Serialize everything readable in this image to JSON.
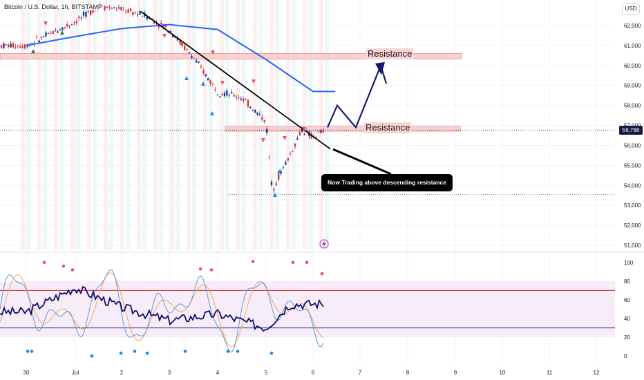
{
  "header": {
    "symbol_title": "Bitcoin / U.S. Dollar, 1h, BITSTAMP",
    "currency": "USD"
  },
  "last_price_label": "56,768",
  "annotations": {
    "resistance_upper": "Resistance",
    "resistance_lower": "Resistance",
    "callout": "Now Trading above descending resistance"
  },
  "colors": {
    "up": "#26a69a",
    "down": "#ef5350",
    "candle_up": "#1a3a9a",
    "candle_down": "#e02f3a",
    "ema": "#2962ff",
    "trendline": "#000000",
    "projection": "#131a6e",
    "resistance_zone": "#f9d0d0",
    "rsi_line": "#0d0d6b",
    "stoch_k": "#5b9bd5",
    "stoch_d": "#f5a25d",
    "level_high": "#c62828",
    "level_low": "#1a237e",
    "rsi_band": "#f3e5f5"
  },
  "chart_data": [
    {
      "type": "candlestick",
      "title": "",
      "ylabel": "USD",
      "yticks": [
        51000,
        52000,
        53000,
        54000,
        55000,
        56000,
        57000,
        58000,
        59000,
        60000,
        61000,
        62000
      ],
      "ytick_labels": [
        "51,000",
        "52,000",
        "53,000",
        "54,000",
        "55,000",
        "56,000",
        "57,000",
        "58,000",
        "59,000",
        "60,000",
        "61,000",
        "62,000"
      ],
      "ylim": [
        50800,
        62800
      ],
      "x_categories": [
        "30",
        "Jul",
        "2",
        "3",
        "4",
        "5",
        "6",
        "7",
        "8",
        "9",
        "10",
        "11",
        "12"
      ],
      "last_price": 56768,
      "resistance_zones": [
        {
          "label": "Resistance",
          "low": 60400,
          "high": 60600
        },
        {
          "label": "Resistance",
          "low": 56780,
          "high": 56950
        }
      ],
      "descending_trendline": {
        "from": [
          "Jul 2 ~12:00",
          62700
        ],
        "to": [
          "Jul 6 ~06:00",
          56100
        ]
      },
      "ema_series": [
        {
          "x": "Jun 30",
          "y": 61000
        },
        {
          "x": "Jul 1",
          "y": 61450
        },
        {
          "x": "Jul 2",
          "y": 61850
        },
        {
          "x": "Jul 3",
          "y": 62050
        },
        {
          "x": "Jul 4",
          "y": 61800
        },
        {
          "x": "Jul 5",
          "y": 60300
        },
        {
          "x": "Jul 6",
          "y": 58700
        }
      ],
      "price_path": [
        {
          "x": "Jun 30",
          "y": 61000
        },
        {
          "x": "Jul 1",
          "y": 62200
        },
        {
          "x": "Jul 1 12:00",
          "y": 63000
        },
        {
          "x": "Jul 2",
          "y": 62800
        },
        {
          "x": "Jul 2 12:00",
          "y": 62500
        },
        {
          "x": "Jul 3",
          "y": 61800
        },
        {
          "x": "Jul 3 12:00",
          "y": 60400
        },
        {
          "x": "Jul 4",
          "y": 58700
        },
        {
          "x": "Jul 4 12:00",
          "y": 58400
        },
        {
          "x": "Jul 5",
          "y": 57200
        },
        {
          "x": "Jul 5 03:00",
          "y": 53800
        },
        {
          "x": "Jul 5 12:00",
          "y": 55500
        },
        {
          "x": "Jul 5 18:00",
          "y": 56800
        },
        {
          "x": "Jul 6",
          "y": 56400
        },
        {
          "x": "Jul 6 06:00",
          "y": 56768
        }
      ],
      "projection_path": [
        {
          "x": "Jul 6 06:00",
          "y": 56900
        },
        {
          "x": "Jul 6 12:00",
          "y": 58000
        },
        {
          "x": "Jul 7",
          "y": 56900
        },
        {
          "x": "Jul 7 12:00",
          "y": 60000
        },
        {
          "x": "Jul 7 18:00",
          "y": 59100
        }
      ]
    },
    {
      "type": "line",
      "title": "",
      "yticks": [
        0,
        20,
        40,
        60,
        80,
        100
      ],
      "ylim": [
        -5,
        105
      ],
      "levels": [
        70,
        30
      ],
      "band": [
        20,
        80
      ],
      "series": [
        {
          "values_key": "rsi"
        },
        {
          "values_key": "stoch_k"
        },
        {
          "values_key": "stoch_d"
        }
      ],
      "rsi": [
        {
          "x": "Jun 30",
          "y": 47
        },
        {
          "x": "Jul 1",
          "y": 73
        },
        {
          "x": "Jul 2",
          "y": 52
        },
        {
          "x": "Jul 3",
          "y": 38
        },
        {
          "x": "Jul 4",
          "y": 45
        },
        {
          "x": "Jul 5",
          "y": 30
        },
        {
          "x": "Jul 5 12:00",
          "y": 55
        },
        {
          "x": "Jul 6 06:00",
          "y": 56
        }
      ]
    }
  ]
}
